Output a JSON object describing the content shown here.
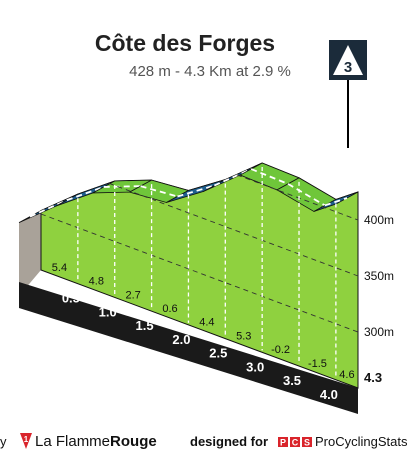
{
  "chart_data": {
    "type": "area",
    "title": "Côte des Forges",
    "subtitle": "428 m - 4.3 Km at 2.9 %",
    "climb_category": "3",
    "x_unit": "km",
    "y_unit": "m",
    "xlim": [
      0,
      4.3
    ],
    "ylim": [
      250,
      428
    ],
    "distance_ticks": [
      "0.5",
      "1.0",
      "1.5",
      "2.0",
      "2.5",
      "3.0",
      "3.5",
      "4.0"
    ],
    "end_distance_label": "4.3",
    "altitude_ticks": [
      {
        "label": "400m",
        "value": 400
      },
      {
        "label": "350m",
        "value": 350
      },
      {
        "label": "300m",
        "value": 300
      }
    ],
    "segments": [
      {
        "from": 0.0,
        "to": 0.5,
        "gradient": "5.4",
        "color": "#1e5f8e"
      },
      {
        "from": 0.5,
        "to": 1.0,
        "gradient": "4.8",
        "color": "#1e5f8e"
      },
      {
        "from": 1.0,
        "to": 1.5,
        "gradient": "2.7",
        "color": "#6fc63a"
      },
      {
        "from": 1.5,
        "to": 2.0,
        "gradient": "0.6",
        "color": "#6fc63a"
      },
      {
        "from": 2.0,
        "to": 2.5,
        "gradient": "4.4",
        "color": "#1e5f8e"
      },
      {
        "from": 2.5,
        "to": 3.0,
        "gradient": "5.3",
        "color": "#1e5f8e"
      },
      {
        "from": 3.0,
        "to": 3.5,
        "gradient": "-0.2",
        "color": "#6fc63a"
      },
      {
        "from": 3.5,
        "to": 4.0,
        "gradient": "-1.5",
        "color": "#6fc63a"
      },
      {
        "from": 4.0,
        "to": 4.3,
        "gradient": "4.6",
        "color": "#1e5f8e"
      }
    ],
    "profile": [
      {
        "x": 0.0,
        "y": 303
      },
      {
        "x": 0.5,
        "y": 330
      },
      {
        "x": 1.0,
        "y": 354
      },
      {
        "x": 1.5,
        "y": 367
      },
      {
        "x": 2.0,
        "y": 370
      },
      {
        "x": 2.5,
        "y": 392
      },
      {
        "x": 3.0,
        "y": 419
      },
      {
        "x": 3.5,
        "y": 418
      },
      {
        "x": 4.0,
        "y": 411
      },
      {
        "x": 4.3,
        "y": 425
      }
    ]
  },
  "footer": {
    "credit_prefix": "y",
    "lfr_name_regular": "La Flamme",
    "lfr_name_bold": "Rouge",
    "lfr_logo_digit": "1",
    "designed_for": "designed for",
    "pcs_name": "ProCyclingStats",
    "pcs_letters": [
      "P",
      "C",
      "S"
    ],
    "pcs_color": "#d9242b",
    "lfr_color": "#d9242b"
  }
}
